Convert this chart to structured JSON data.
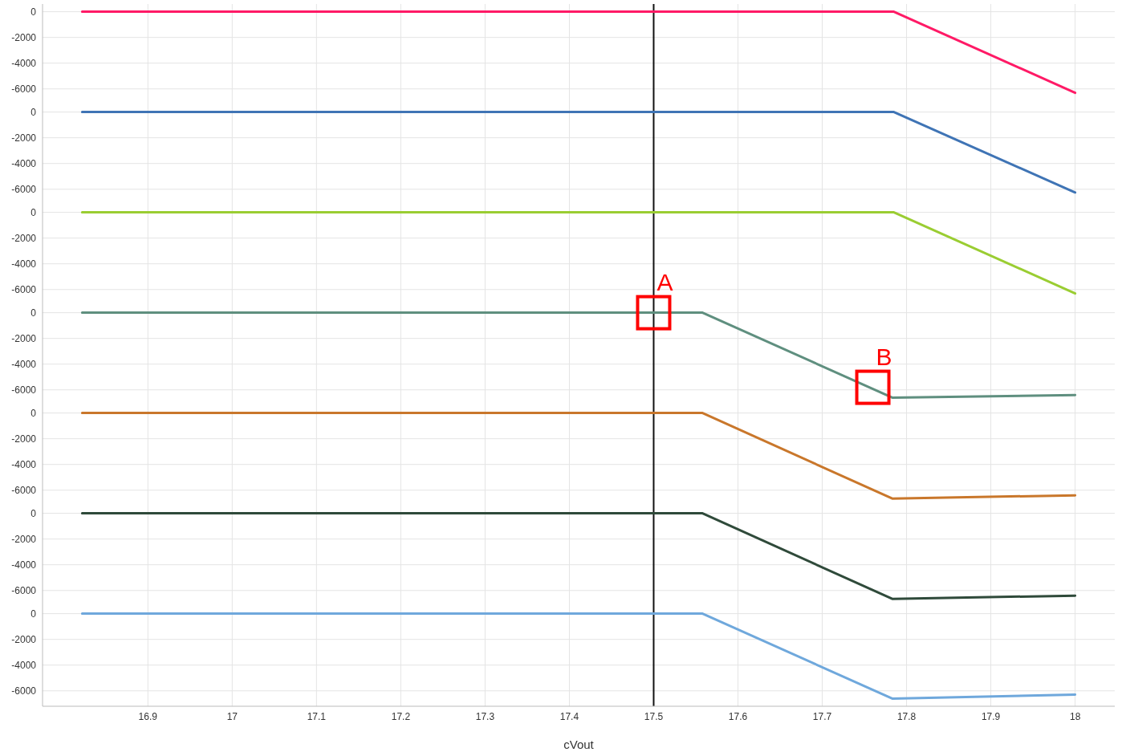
{
  "chart_data": [
    {
      "type": "line",
      "x": [
        16.822,
        17.785,
        18.0
      ],
      "series": [
        {
          "color": "#ff1a66",
          "values": [
            0,
            0,
            -6300
          ]
        }
      ],
      "xlim": [
        16.775,
        18.047
      ],
      "xticks": [
        16.9,
        17,
        17.1,
        17.2,
        17.3,
        17.4,
        17.5,
        17.6,
        17.7,
        17.8,
        17.9,
        18
      ],
      "ylim": [
        -7200,
        600
      ],
      "yticks": [
        0,
        -2000,
        -4000,
        -6000
      ],
      "grid": true,
      "tick_labels": "y",
      "ref_lines": [
        {
          "axis": "x",
          "value": 17.5,
          "color": "#111111"
        }
      ]
    },
    {
      "type": "line",
      "x": [
        16.822,
        17.785,
        18.0
      ],
      "series": [
        {
          "color": "#3f74b5",
          "values": [
            0,
            0,
            -6250
          ]
        }
      ],
      "xlim": [
        16.775,
        18.047
      ],
      "xticks": [
        16.9,
        17,
        17.1,
        17.2,
        17.3,
        17.4,
        17.5,
        17.6,
        17.7,
        17.8,
        17.9,
        18
      ],
      "ylim": [
        -7200,
        600
      ],
      "yticks": [
        0,
        -2000,
        -4000,
        -6000
      ],
      "grid": true,
      "tick_labels": "y",
      "ref_lines": [
        {
          "axis": "x",
          "value": 17.5,
          "color": "#111111"
        }
      ]
    },
    {
      "type": "line",
      "x": [
        16.822,
        17.785,
        18.0
      ],
      "series": [
        {
          "color": "#9acd32",
          "values": [
            0,
            0,
            -6300
          ]
        }
      ],
      "xlim": [
        16.775,
        18.047
      ],
      "xticks": [
        16.9,
        17,
        17.1,
        17.2,
        17.3,
        17.4,
        17.5,
        17.6,
        17.7,
        17.8,
        17.9,
        18
      ],
      "ylim": [
        -7200,
        600
      ],
      "yticks": [
        0,
        -2000,
        -4000,
        -6000
      ],
      "grid": true,
      "tick_labels": "y",
      "ref_lines": [
        {
          "axis": "x",
          "value": 17.5,
          "color": "#111111"
        }
      ]
    },
    {
      "type": "line",
      "x": [
        16.822,
        17.558,
        17.783,
        18.0
      ],
      "series": [
        {
          "color": "#5f8f7f",
          "values": [
            0,
            0,
            -6600,
            -6400
          ]
        }
      ],
      "xlim": [
        16.775,
        18.047
      ],
      "xticks": [
        16.9,
        17,
        17.1,
        17.2,
        17.3,
        17.4,
        17.5,
        17.6,
        17.7,
        17.8,
        17.9,
        18
      ],
      "ylim": [
        -7200,
        600
      ],
      "yticks": [
        0,
        -2000,
        -4000,
        -6000
      ],
      "grid": true,
      "tick_labels": "y",
      "ref_lines": [
        {
          "axis": "x",
          "value": 17.5,
          "color": "#111111"
        }
      ],
      "annotations": [
        {
          "text": "A",
          "x": 17.5,
          "y": 0
        },
        {
          "text": "B",
          "x": 17.76,
          "y": -5800
        }
      ]
    },
    {
      "type": "line",
      "x": [
        16.822,
        17.558,
        17.783,
        18.0
      ],
      "series": [
        {
          "color": "#c9772b",
          "values": [
            0,
            0,
            -6650,
            -6400
          ]
        }
      ],
      "xlim": [
        16.775,
        18.047
      ],
      "xticks": [
        16.9,
        17,
        17.1,
        17.2,
        17.3,
        17.4,
        17.5,
        17.6,
        17.7,
        17.8,
        17.9,
        18
      ],
      "ylim": [
        -7200,
        600
      ],
      "yticks": [
        0,
        -2000,
        -4000,
        -6000
      ],
      "grid": true,
      "tick_labels": "y",
      "ref_lines": [
        {
          "axis": "x",
          "value": 17.5,
          "color": "#111111"
        }
      ]
    },
    {
      "type": "line",
      "x": [
        16.822,
        17.558,
        17.783,
        18.0
      ],
      "series": [
        {
          "color": "#2f4a3a",
          "values": [
            0,
            0,
            -6650,
            -6400
          ]
        }
      ],
      "xlim": [
        16.775,
        18.047
      ],
      "xticks": [
        16.9,
        17,
        17.1,
        17.2,
        17.3,
        17.4,
        17.5,
        17.6,
        17.7,
        17.8,
        17.9,
        18
      ],
      "ylim": [
        -7200,
        600
      ],
      "yticks": [
        0,
        -2000,
        -4000,
        -6000
      ],
      "grid": true,
      "tick_labels": "y",
      "ref_lines": [
        {
          "axis": "x",
          "value": 17.5,
          "color": "#111111"
        }
      ]
    },
    {
      "type": "line",
      "x": [
        16.822,
        17.558,
        17.783,
        18.0
      ],
      "series": [
        {
          "color": "#6fa8dc",
          "values": [
            0,
            0,
            -6600,
            -6300
          ]
        }
      ],
      "xlim": [
        16.775,
        18.047
      ],
      "xticks": [
        16.9,
        17,
        17.1,
        17.2,
        17.3,
        17.4,
        17.5,
        17.6,
        17.7,
        17.8,
        17.9,
        18
      ],
      "ylim": [
        -7200,
        600
      ],
      "yticks": [
        0,
        -2000,
        -4000,
        -6000
      ],
      "grid": true,
      "xlabel": "cVout",
      "ref_lines": [
        {
          "axis": "x",
          "value": 17.5,
          "color": "#111111"
        }
      ]
    }
  ]
}
